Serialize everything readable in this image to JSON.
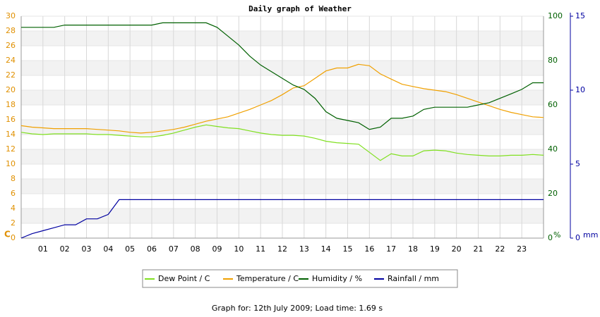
{
  "chart_data": {
    "type": "line",
    "title": "Daily graph of Weather",
    "footer": "Graph for: 12th July 2009; Load time: 1.69 s",
    "y_unit": "C",
    "y2_unit": "%",
    "y3_unit": "mm",
    "x": [
      0,
      0.5,
      1,
      1.5,
      2,
      2.5,
      3,
      3.5,
      4,
      4.5,
      5,
      5.5,
      6,
      6.5,
      7,
      7.5,
      8,
      8.5,
      9,
      9.5,
      10,
      10.5,
      11,
      11.5,
      12,
      12.5,
      13,
      13.5,
      14,
      14.5,
      15,
      15.5,
      16,
      16.5,
      17,
      17.5,
      18,
      18.5,
      19,
      19.5,
      20,
      20.5,
      21,
      21.5,
      22,
      22.5,
      23,
      23.5,
      24
    ],
    "xlim": [
      0,
      24
    ],
    "xticks": [
      {
        "value": 1,
        "label": "01"
      },
      {
        "value": 2,
        "label": "02"
      },
      {
        "value": 3,
        "label": "03"
      },
      {
        "value": 4,
        "label": "04"
      },
      {
        "value": 5,
        "label": "05"
      },
      {
        "value": 6,
        "label": "06"
      },
      {
        "value": 7,
        "label": "07"
      },
      {
        "value": 8,
        "label": "08"
      },
      {
        "value": 9,
        "label": "09"
      },
      10,
      11,
      12,
      13,
      14,
      15,
      16,
      17,
      18,
      19,
      20,
      21,
      22,
      23
    ],
    "ylim": [
      0,
      30
    ],
    "yticks": [
      0,
      2,
      4,
      6,
      8,
      10,
      12,
      14,
      16,
      18,
      20,
      22,
      24,
      26,
      28,
      30
    ],
    "y2lim": [
      0,
      100
    ],
    "y2ticks": [
      0,
      20,
      40,
      60,
      80,
      100
    ],
    "y3lim": [
      0,
      15
    ],
    "y3ticks": [
      0,
      5,
      10,
      15
    ],
    "grid": true,
    "series": [
      {
        "name": "Dew Point / C",
        "color": "#80e020",
        "axis": "y",
        "values": [
          14.3,
          14.1,
          14.0,
          14.1,
          14.1,
          14.1,
          14.1,
          14.0,
          14.0,
          13.9,
          13.8,
          13.7,
          13.7,
          13.9,
          14.2,
          14.6,
          15.0,
          15.3,
          15.1,
          14.9,
          14.8,
          14.5,
          14.2,
          14.0,
          13.9,
          13.9,
          13.8,
          13.5,
          13.1,
          12.9,
          12.8,
          12.7,
          11.6,
          10.5,
          11.4,
          11.1,
          11.1,
          11.8,
          11.9,
          11.8,
          11.5,
          11.3,
          11.2,
          11.1,
          11.1,
          11.2,
          11.2,
          11.3,
          11.2
        ]
      },
      {
        "name": "Temperature / C",
        "color": "#f0a000",
        "axis": "y",
        "values": [
          15.2,
          15.0,
          14.9,
          14.8,
          14.8,
          14.8,
          14.8,
          14.7,
          14.6,
          14.5,
          14.3,
          14.2,
          14.3,
          14.5,
          14.7,
          15.0,
          15.4,
          15.8,
          16.1,
          16.4,
          16.9,
          17.4,
          18.0,
          18.6,
          19.4,
          20.3,
          20.6,
          21.6,
          22.6,
          23.0,
          23.0,
          23.5,
          23.3,
          22.2,
          21.5,
          20.8,
          20.5,
          20.2,
          20.0,
          19.8,
          19.4,
          18.9,
          18.4,
          17.9,
          17.4,
          17.0,
          16.7,
          16.4,
          16.3
        ]
      },
      {
        "name": "Humidity / %",
        "color": "#006000",
        "axis": "y2",
        "values": [
          95,
          95,
          95,
          95,
          96,
          96,
          96,
          96,
          96,
          96,
          96,
          96,
          96,
          97,
          97,
          97,
          97,
          97,
          95,
          91,
          87,
          82,
          78,
          75,
          72,
          69,
          67,
          63,
          57,
          54,
          53,
          52,
          49,
          50,
          54,
          54,
          55,
          58,
          59,
          59,
          59,
          59,
          60,
          61,
          63,
          65,
          67,
          70,
          70
        ]
      },
      {
        "name": "Rainfall / mm",
        "color": "#0000a0",
        "axis": "y3",
        "values": [
          0,
          0.3,
          0.5,
          0.7,
          0.9,
          0.9,
          1.3,
          1.3,
          1.6,
          2.6,
          2.6,
          2.6,
          2.6,
          2.6,
          2.6,
          2.6,
          2.6,
          2.6,
          2.6,
          2.6,
          2.6,
          2.6,
          2.6,
          2.6,
          2.6,
          2.6,
          2.6,
          2.6,
          2.6,
          2.6,
          2.6,
          2.6,
          2.6,
          2.6,
          2.6,
          2.6,
          2.6,
          2.6,
          2.6,
          2.6,
          2.6,
          2.6,
          2.6,
          2.6,
          2.6,
          2.6,
          2.6,
          2.6,
          2.6
        ]
      }
    ]
  }
}
